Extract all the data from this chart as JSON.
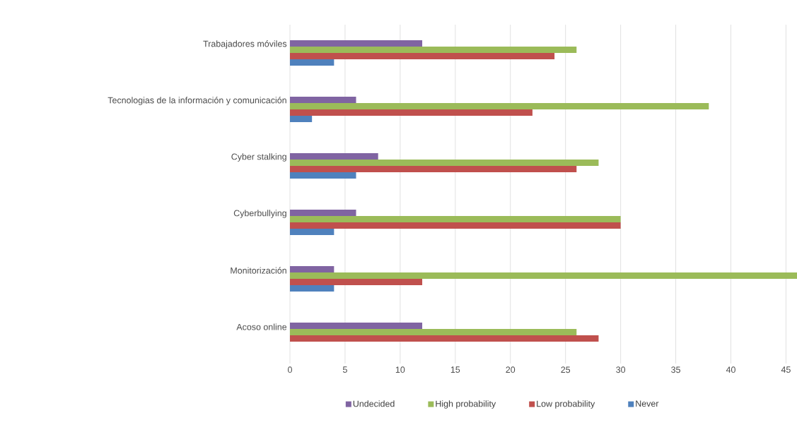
{
  "chart_data": {
    "type": "bar",
    "orientation": "horizontal",
    "categories": [
      "Trabajadores móviles",
      "Tecnologias de la información y comunicación",
      "Cyber stalking",
      "Cyberbullying",
      "Monitorización",
      "Acoso online"
    ],
    "series": [
      {
        "name": "Undecided",
        "color": "#8064a2",
        "values": [
          12,
          6,
          8,
          6,
          4,
          12
        ]
      },
      {
        "name": "High probability",
        "color": "#9bbb59",
        "values": [
          26,
          38,
          28,
          30,
          46,
          26
        ]
      },
      {
        "name": "Low probability",
        "color": "#c0504d",
        "values": [
          24,
          22,
          26,
          30,
          12,
          28
        ]
      },
      {
        "name": "Never",
        "color": "#4f81bd",
        "values": [
          4,
          2,
          6,
          4,
          4,
          0
        ]
      }
    ],
    "xlim": [
      0,
      46
    ],
    "xticks": [
      0,
      5,
      10,
      15,
      20,
      25,
      30,
      35,
      40,
      45
    ],
    "grid": "x",
    "legend": "bottom"
  }
}
